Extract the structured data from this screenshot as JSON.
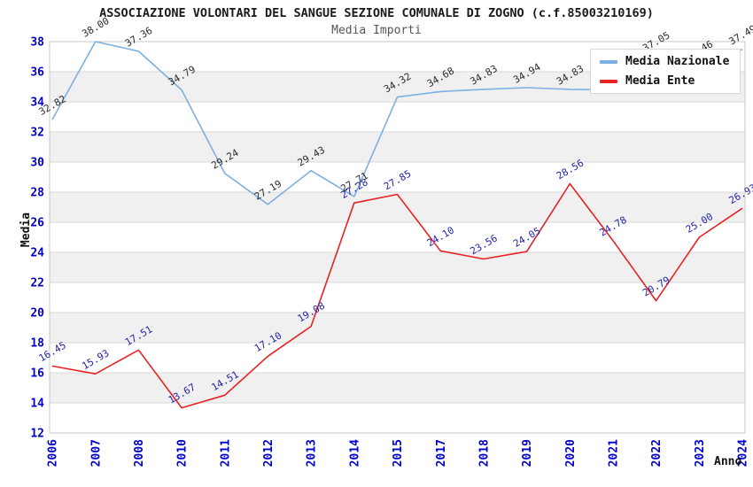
{
  "chart_data": {
    "type": "line",
    "title": "ASSOCIAZIONE VOLONTARI DEL SANGUE SEZIONE COMUNALE DI ZOGNO (c.f.85003210169)",
    "subtitle": "Media Importi",
    "xlabel": "Anno",
    "ylabel": "Media",
    "ylim": [
      12,
      38
    ],
    "ytick_step": 2,
    "yticks": [
      12,
      14,
      16,
      18,
      20,
      22,
      24,
      26,
      28,
      30,
      32,
      34,
      36,
      38
    ],
    "grid": "horizontal-with-alternating-bands",
    "legend_position": "top-right-inside",
    "categories": [
      "2006",
      "2007",
      "2008",
      "2010",
      "2011",
      "2012",
      "2013",
      "2014",
      "2015",
      "2017",
      "2018",
      "2019",
      "2020",
      "2021",
      "2022",
      "2023",
      "2024"
    ],
    "series": [
      {
        "name": "Media Nazionale",
        "color": "#7cb0e2",
        "label_color": "#2b2b2b",
        "values": [
          32.82,
          38.0,
          37.36,
          34.79,
          29.24,
          27.19,
          29.43,
          27.71,
          34.32,
          34.68,
          34.83,
          34.94,
          34.83,
          34.8,
          37.05,
          36.46,
          37.49
        ],
        "labels": [
          "32.82",
          "38.00",
          "37.36",
          "34.79",
          "29.24",
          "27.19",
          "29.43",
          "27.71",
          "34.32",
          "34.68",
          "34.83",
          "34.94",
          "34.83",
          null,
          "37.05",
          "36.46",
          "37.49"
        ]
      },
      {
        "name": "Media Ente",
        "color": "#e62222",
        "label_color": "#2424aa",
        "values": [
          16.45,
          15.93,
          17.51,
          13.67,
          14.51,
          17.1,
          19.08,
          27.28,
          27.85,
          24.1,
          23.56,
          24.05,
          28.56,
          24.78,
          20.79,
          25.0,
          26.93
        ],
        "labels": [
          "16.45",
          "15.93",
          "17.51",
          "13.67",
          "14.51",
          "17.10",
          "19.08",
          "27.28",
          "27.85",
          "24.10",
          "23.56",
          "24.05",
          "28.56",
          "24.78",
          "20.79",
          "25.00",
          "26.93"
        ]
      }
    ],
    "colors": {
      "tick_label": "#0000cc",
      "grid_line": "#d8d8d8",
      "band_fill": "#f0f0f0",
      "frame": "#c9c9c9",
      "axis_title": "#111111",
      "title": "#1a1a1a",
      "subtitle": "#555555"
    }
  }
}
